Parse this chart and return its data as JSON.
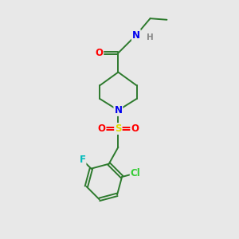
{
  "background_color": "#e8e8e8",
  "atom_colors": {
    "C": "#2d7a2d",
    "N": "#0000ee",
    "O": "#ff0000",
    "S": "#dddd00",
    "F": "#00bbbb",
    "Cl": "#33cc33",
    "H": "#888888"
  },
  "bond_color": "#2d7a2d",
  "font_size": 8.5,
  "lw": 1.4
}
